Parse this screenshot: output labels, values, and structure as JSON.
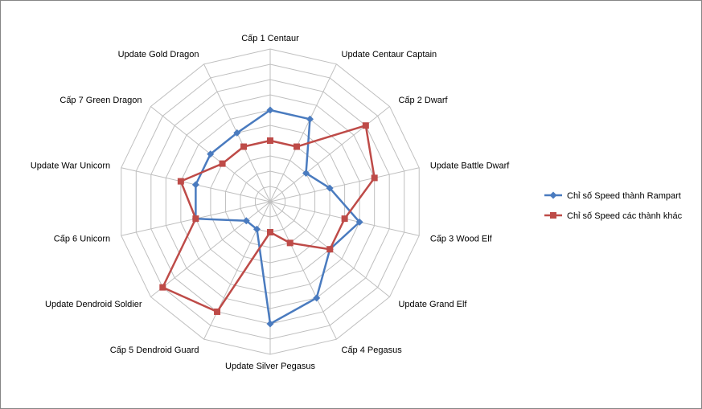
{
  "chart_data": {
    "type": "radar",
    "categories": [
      "Cấp 1 Centaur",
      "Update Centaur Captain",
      "Cấp 2 Dwarf",
      "Update Battle Dwarf",
      "Cấp 3 Wood Elf",
      "Update Grand Elf",
      "Cấp 4 Pegasus",
      "Update Silver Pegasus",
      "Cấp 5 Dendroid Guard",
      "Update Dendroid Soldier",
      "Cấp 6 Unicorn",
      "Update War Unicorn",
      "Cấp 7 Green Dragon",
      "Update Gold Dragon"
    ],
    "rlim": [
      0,
      10
    ],
    "grid_rings": 10,
    "series": [
      {
        "name": "Chỉ số Speed  thành Rampart",
        "color": "#4a7bbf",
        "marker": "diamond",
        "values": [
          6,
          6,
          3,
          4,
          6,
          5,
          7,
          8,
          2,
          2,
          5,
          5,
          5,
          5
        ]
      },
      {
        "name": "Chỉ số Speed  các thành khác",
        "color": "#be4b48",
        "marker": "square",
        "values": [
          4,
          4,
          8,
          7,
          5,
          5,
          3,
          2,
          8,
          9,
          5,
          6,
          4,
          4
        ]
      }
    ],
    "legend_position": "right"
  }
}
